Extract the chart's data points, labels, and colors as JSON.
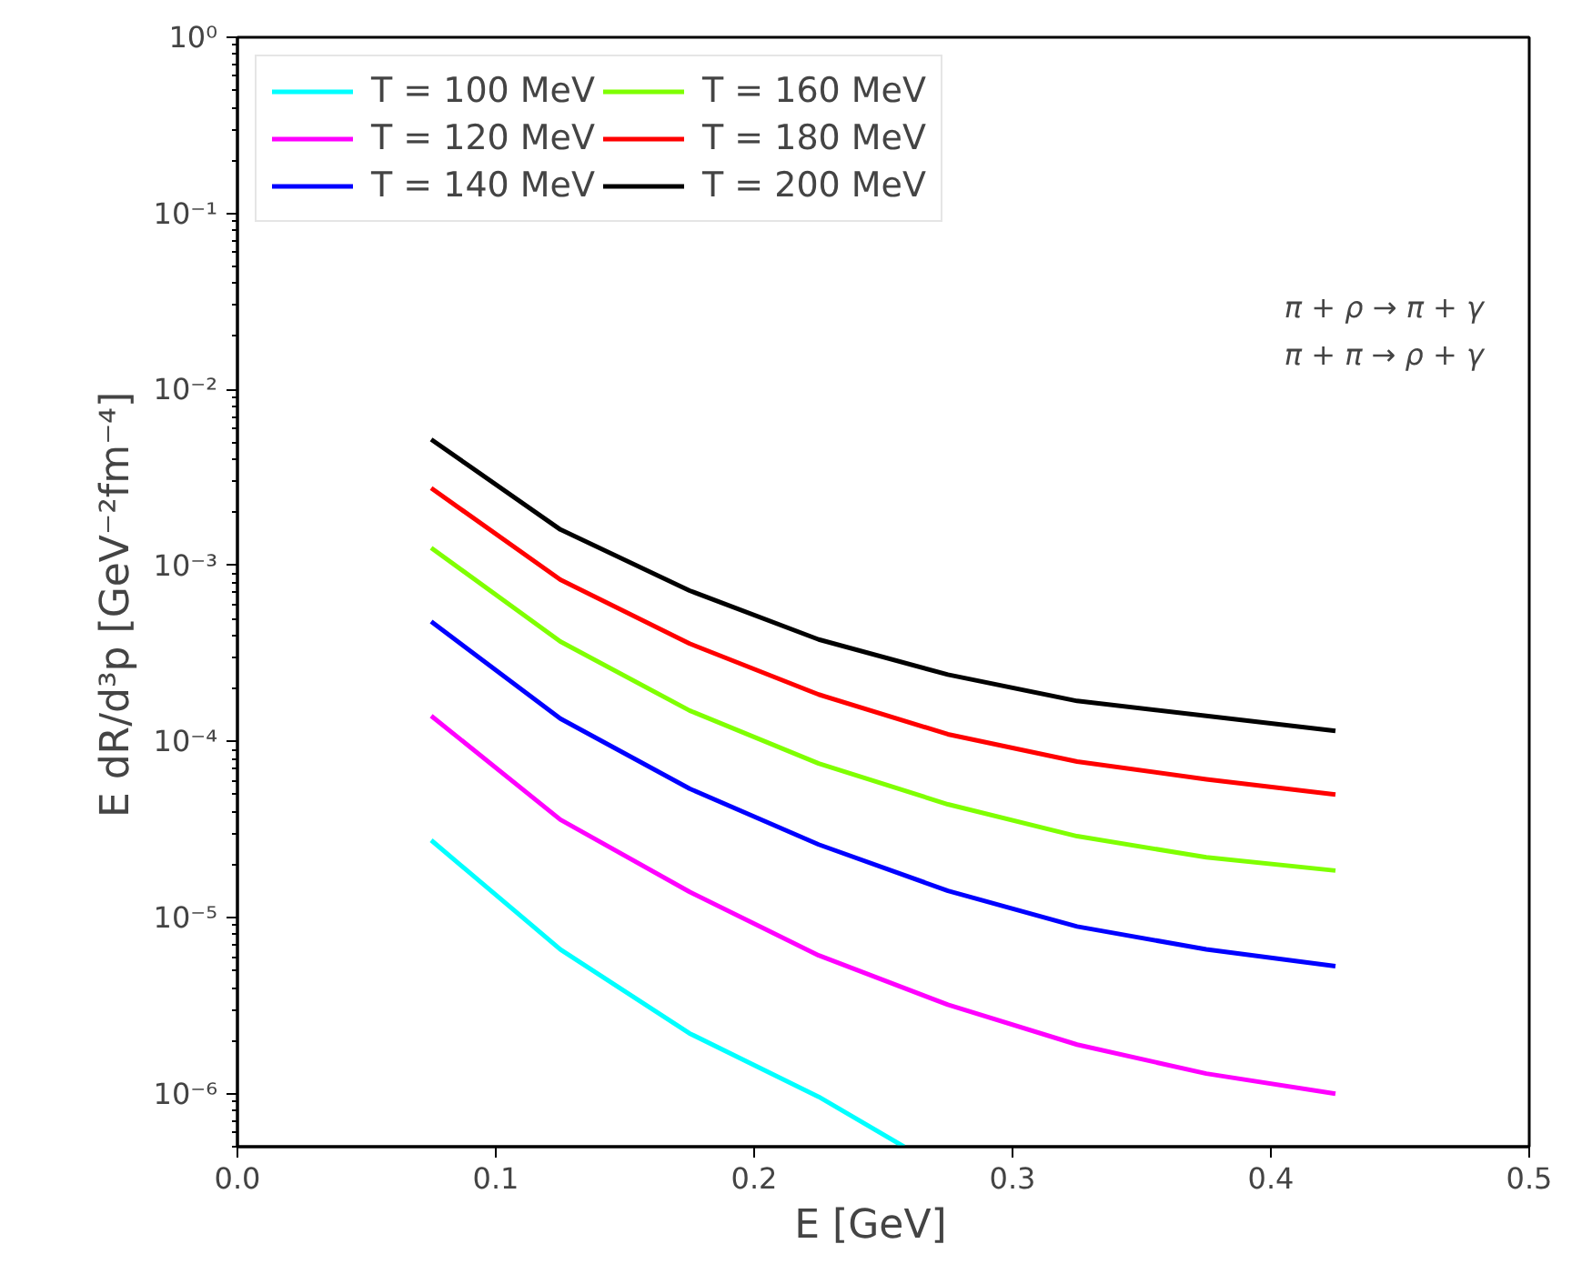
{
  "chart_data": {
    "type": "line",
    "xlabel": "E   [GeV]",
    "ylabel": "E dR/d³p   [GeV⁻²fm⁻⁴]",
    "log": "y",
    "grid": false,
    "legend": "top left",
    "line_style": "solid",
    "marker": "none",
    "xlim": [
      0.0,
      0.5
    ],
    "xticks": [
      {
        "value": 0.0,
        "label": "0.0"
      },
      0.1,
      0.2,
      0.3,
      0.4,
      0.5
    ],
    "ylim": [
      5e-07,
      1
    ],
    "yticks": [
      {
        "value": 1e-06,
        "label": "10⁻⁶"
      },
      {
        "value": 1e-05,
        "label": "10⁻⁵"
      },
      {
        "value": 0.0001,
        "label": "10⁻⁴"
      },
      {
        "value": 0.001,
        "label": "10⁻³"
      },
      {
        "value": 0.01,
        "label": "10⁻²"
      },
      {
        "value": 0.1,
        "label": "10⁻¹"
      },
      {
        "value": 1,
        "label": "10⁰"
      }
    ],
    "x": [
      0.075,
      0.125,
      0.175,
      0.225,
      0.275,
      0.325,
      0.375,
      0.425
    ],
    "annotations": [
      "π + ρ → π + γ",
      "π + π → ρ + γ"
    ],
    "series": [
      {
        "name": "T = 100 MeV",
        "color": "#00ffff",
        "x": [
          0.075,
          0.125,
          0.175,
          0.225,
          0.258
        ],
        "values": [
          2.75e-05,
          6.6e-06,
          2.2e-06,
          9.6e-07,
          5e-07
        ]
      },
      {
        "name": "T = 120 MeV",
        "color": "#ff00ff",
        "values": [
          0.00014,
          3.6e-05,
          1.4e-05,
          6.1e-06,
          3.2e-06,
          1.9e-06,
          1.3e-06,
          1e-06
        ]
      },
      {
        "name": "T = 140 MeV",
        "color": "#0000ff",
        "values": [
          0.00048,
          0.000135,
          5.4e-05,
          2.6e-05,
          1.42e-05,
          8.9e-06,
          6.6e-06,
          5.3e-06
        ]
      },
      {
        "name": "T = 160 MeV",
        "color": "#7fff00",
        "values": [
          0.00126,
          0.00037,
          0.00015,
          7.5e-05,
          4.4e-05,
          2.9e-05,
          2.2e-05,
          1.85e-05
        ]
      },
      {
        "name": "T = 180 MeV",
        "color": "#ff0000",
        "values": [
          0.00275,
          0.00083,
          0.00036,
          0.000185,
          0.00011,
          7.7e-05,
          6.1e-05,
          5e-05
        ]
      },
      {
        "name": "T = 200 MeV",
        "color": "#000000",
        "values": [
          0.0052,
          0.0016,
          0.00072,
          0.00038,
          0.00024,
          0.00017,
          0.00014,
          0.000115
        ]
      }
    ]
  }
}
